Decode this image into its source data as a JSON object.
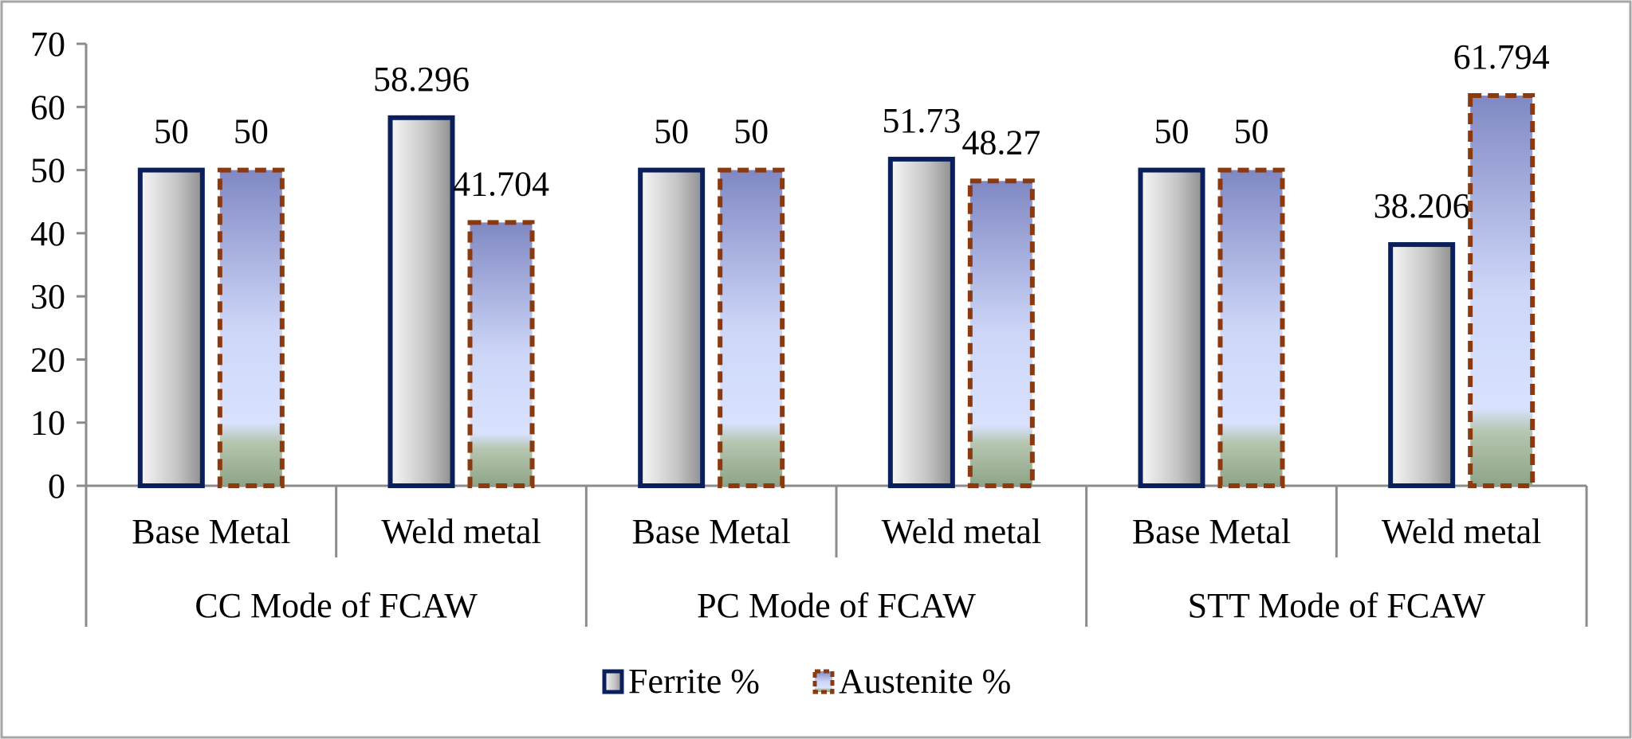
{
  "chart_data": {
    "type": "bar",
    "title": "",
    "xlabel": "",
    "ylabel": "",
    "ylim": [
      0,
      70
    ],
    "yticks": [
      0,
      10,
      20,
      30,
      40,
      50,
      60,
      70
    ],
    "grid": false,
    "legend_position": "bottom",
    "groups": [
      "CC Mode of FCAW",
      "PC Mode of FCAW",
      "STT Mode of FCAW"
    ],
    "categories": [
      "Base Metal",
      "Weld metal",
      "Base Metal",
      "Weld metal",
      "Base Metal",
      "Weld metal"
    ],
    "series": [
      {
        "name": "Ferrite %",
        "values": [
          50,
          58.296,
          50,
          51.73,
          50,
          38.206
        ],
        "labels": [
          "50",
          "58.296",
          "50",
          "51.73",
          "50",
          "38.206"
        ],
        "border": "#0b1f5c"
      },
      {
        "name": "Austenite %",
        "values": [
          50,
          41.704,
          50,
          48.27,
          50,
          61.794
        ],
        "labels": [
          "50",
          "41.704",
          "50",
          "48.27",
          "50",
          "61.794"
        ],
        "border": "#8b3a0f"
      }
    ]
  }
}
